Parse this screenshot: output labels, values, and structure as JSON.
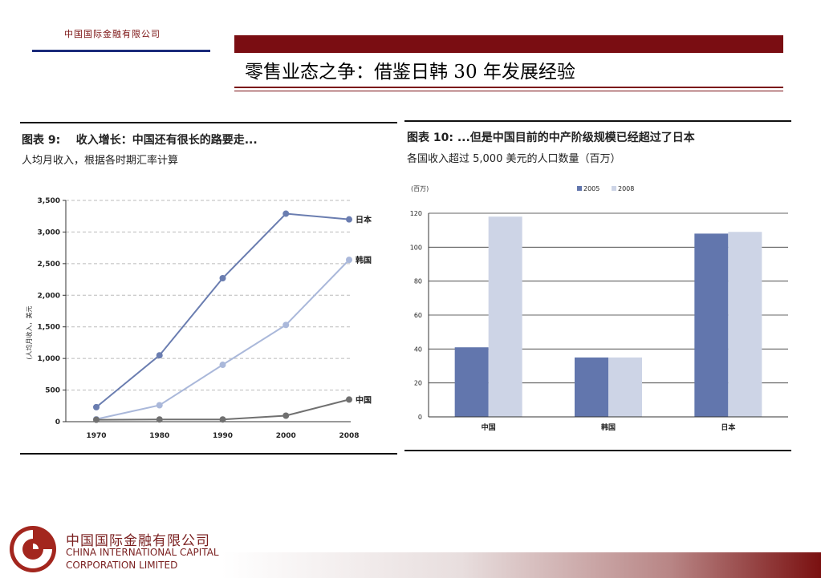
{
  "header": {
    "company": "中国国际金融有限公司",
    "title": "零售业态之争：借鉴日韩 30 年发展经验"
  },
  "left_figure": {
    "label": "图表 9:",
    "title": "收入增长：中国还有很长的路要走...",
    "subtitle": "人均月收入，根据各时期汇率计算",
    "ylabel": "(人均月收入，美元",
    "y_ticks": [
      "0",
      "500",
      "1,000",
      "1,500",
      "2,000",
      "2,500",
      "3,000",
      "3,500"
    ],
    "x_ticks": [
      "1970",
      "1980",
      "1990",
      "2000",
      "2008"
    ],
    "series_labels": [
      "日本",
      "韩国",
      "中国"
    ]
  },
  "right_figure": {
    "label": "图表 10:",
    "title": "...但是中国目前的中产阶级规模已经超过了日本",
    "subtitle": "各国收入超过 5,000 美元的人口数量（百万）",
    "unit": "(百万)",
    "legend": [
      "2005",
      "2008"
    ],
    "y_ticks": [
      "0",
      "20",
      "40",
      "60",
      "80",
      "100",
      "120"
    ],
    "categories": [
      "中国",
      "韩国",
      "日本"
    ]
  },
  "chart_data": [
    {
      "type": "line",
      "title": "收入增长：中国还有很长的路要走...",
      "ylabel": "(人均月收入，美元",
      "x": [
        "1970",
        "1980",
        "1990",
        "2000",
        "2008"
      ],
      "ylim": [
        0,
        3500
      ],
      "grid": true,
      "series": [
        {
          "name": "日本",
          "values": [
            230,
            1050,
            2270,
            3290,
            3200
          ],
          "color": "#6a7db0"
        },
        {
          "name": "韩国",
          "values": [
            40,
            260,
            900,
            1530,
            2560
          ],
          "color": "#aab8da"
        },
        {
          "name": "中国",
          "values": [
            30,
            35,
            35,
            95,
            350
          ],
          "color": "#707070"
        }
      ]
    },
    {
      "type": "bar",
      "title": "...但是中国目前的中产阶级规模已经超过了日本",
      "categories": [
        "中国",
        "韩国",
        "日本"
      ],
      "ylim": [
        0,
        120
      ],
      "grid": true,
      "legend_position": "top",
      "series": [
        {
          "name": "2005",
          "values": [
            41,
            35,
            108
          ],
          "color": "#6276ad"
        },
        {
          "name": "2008",
          "values": [
            118,
            35,
            109
          ],
          "color": "#cdd4e6"
        }
      ]
    }
  ],
  "footer": {
    "company_cn": "中国国际金融有限公司",
    "company_en_1": "CHINA INTERNATIONAL CAPITAL",
    "company_en_2": "CORPORATION LIMITED"
  }
}
